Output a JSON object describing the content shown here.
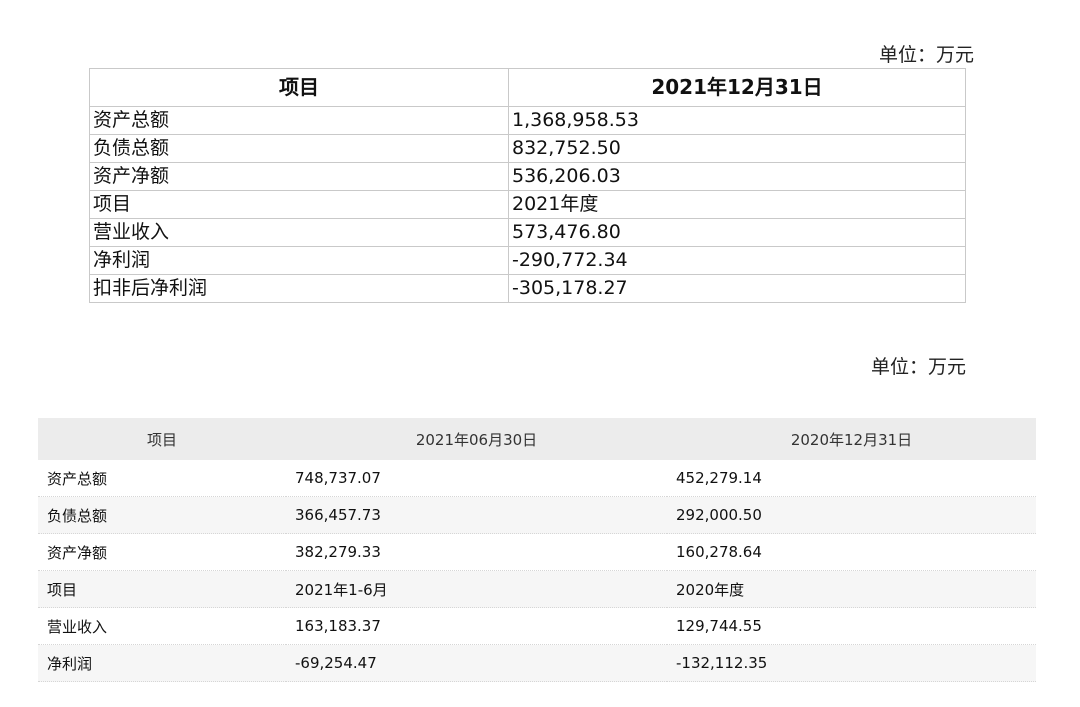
{
  "unit_label": "单位：万元",
  "table1": {
    "headers": [
      "项目",
      "2021年12月31日"
    ],
    "rows": [
      [
        "资产总额",
        "1,368,958.53"
      ],
      [
        "负债总额",
        "832,752.50"
      ],
      [
        "资产净额",
        "536,206.03"
      ],
      [
        "项目",
        "2021年度"
      ],
      [
        "营业收入",
        "573,476.80"
      ],
      [
        "净利润",
        "-290,772.34"
      ],
      [
        "扣非后净利润",
        "-305,178.27"
      ]
    ]
  },
  "table2": {
    "headers": [
      "项目",
      "2021年06月30日",
      "2020年12月31日"
    ],
    "rows": [
      [
        "资产总额",
        "748,737.07",
        "452,279.14"
      ],
      [
        "负债总额",
        "366,457.73",
        "292,000.50"
      ],
      [
        "资产净额",
        "382,279.33",
        "160,278.64"
      ],
      [
        "项目",
        "2021年1-6月",
        "2020年度"
      ],
      [
        "营业收入",
        "163,183.37",
        "129,744.55"
      ],
      [
        "净利润",
        "-69,254.47",
        "-132,112.35"
      ]
    ]
  }
}
